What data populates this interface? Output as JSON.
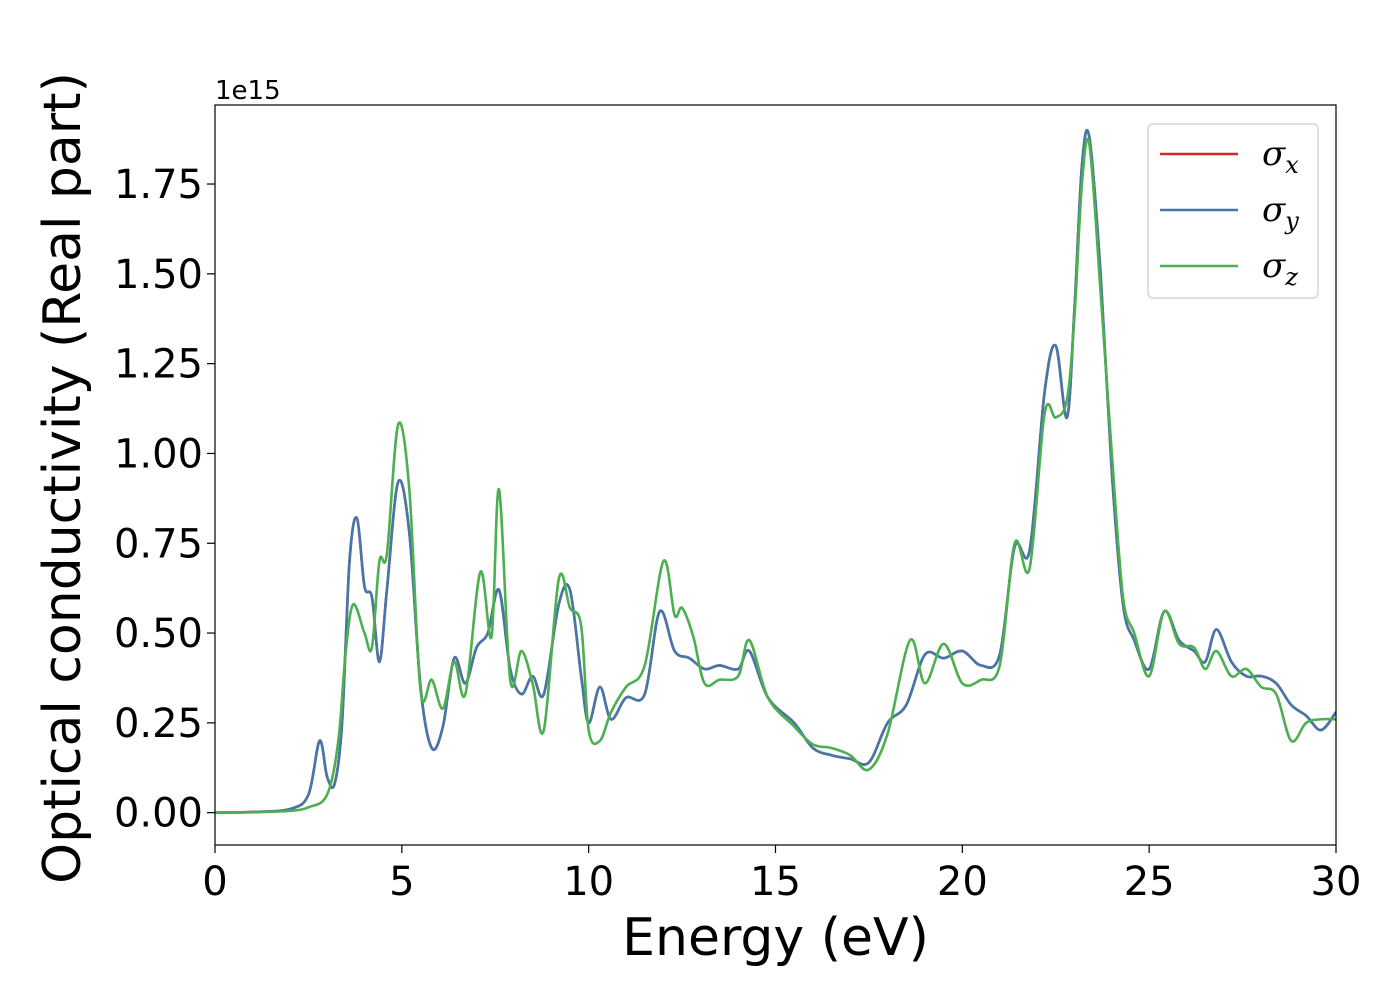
{
  "chart_data": {
    "type": "line",
    "xlabel": "Energy (eV)",
    "ylabel": "Optical conductivity (Real part)",
    "offset_text": "1e15",
    "xlim": [
      0,
      30
    ],
    "ylim": [
      -0.09,
      1.97
    ],
    "x_ticks": [
      0,
      5,
      10,
      15,
      20,
      25,
      30
    ],
    "x_tick_labels": [
      "0",
      "5",
      "10",
      "15",
      "20",
      "25",
      "30"
    ],
    "y_ticks": [
      0,
      0.25,
      0.5,
      0.75,
      1.0,
      1.25,
      1.5,
      1.75
    ],
    "y_tick_labels": [
      "0.00",
      "0.25",
      "0.50",
      "0.75",
      "1.00",
      "1.25",
      "1.50",
      "1.75"
    ],
    "grid": false,
    "legend_position": "top-right",
    "colors": {
      "sigma_x": "#d62728",
      "sigma_y": "#4477aa",
      "sigma_z": "#4caf50"
    },
    "series": [
      {
        "name": "σx",
        "legend_symbol": "σ",
        "legend_sub": "x",
        "color": "#d62728",
        "x": [
          0,
          1,
          2,
          2.5,
          2.8,
          3.0,
          3.2,
          3.4,
          3.6,
          3.8,
          4.0,
          4.2,
          4.4,
          4.6,
          4.9,
          5.2,
          5.5,
          5.8,
          6.1,
          6.4,
          6.7,
          7.0,
          7.3,
          7.6,
          7.9,
          8.2,
          8.5,
          8.8,
          9.2,
          9.5,
          9.8,
          10.0,
          10.3,
          10.6,
          11.0,
          11.5,
          11.9,
          12.3,
          12.7,
          13.1,
          13.5,
          14.0,
          14.3,
          14.8,
          15.5,
          16.0,
          16.5,
          17.0,
          17.5,
          18.0,
          18.5,
          19.0,
          19.5,
          20.0,
          20.5,
          21.0,
          21.4,
          21.8,
          22.2,
          22.5,
          22.8,
          23.0,
          23.2,
          23.4,
          23.7,
          24.0,
          24.3,
          24.6,
          25.0,
          25.4,
          25.8,
          26.2,
          26.5,
          26.8,
          27.2,
          27.6,
          28.0,
          28.4,
          28.8,
          29.2,
          29.6,
          30.0
        ],
        "y": [
          0,
          0.002,
          0.01,
          0.05,
          0.2,
          0.1,
          0.08,
          0.25,
          0.7,
          0.82,
          0.63,
          0.6,
          0.42,
          0.62,
          0.92,
          0.78,
          0.35,
          0.18,
          0.24,
          0.43,
          0.36,
          0.46,
          0.5,
          0.62,
          0.4,
          0.33,
          0.38,
          0.33,
          0.58,
          0.62,
          0.38,
          0.25,
          0.35,
          0.26,
          0.32,
          0.33,
          0.56,
          0.45,
          0.43,
          0.4,
          0.41,
          0.4,
          0.45,
          0.32,
          0.25,
          0.18,
          0.16,
          0.15,
          0.14,
          0.25,
          0.3,
          0.44,
          0.43,
          0.45,
          0.41,
          0.44,
          0.74,
          0.73,
          1.17,
          1.3,
          1.1,
          1.4,
          1.8,
          1.88,
          1.5,
          0.95,
          0.58,
          0.48,
          0.4,
          0.56,
          0.48,
          0.45,
          0.42,
          0.51,
          0.42,
          0.38,
          0.38,
          0.36,
          0.3,
          0.27,
          0.23,
          0.28
        ]
      },
      {
        "name": "σy",
        "legend_symbol": "σ",
        "legend_sub": "y",
        "color": "#4477aa",
        "x": [
          0,
          1,
          2,
          2.5,
          2.8,
          3.0,
          3.2,
          3.4,
          3.6,
          3.8,
          4.0,
          4.2,
          4.4,
          4.6,
          4.9,
          5.2,
          5.5,
          5.8,
          6.1,
          6.4,
          6.7,
          7.0,
          7.3,
          7.6,
          7.9,
          8.2,
          8.5,
          8.8,
          9.2,
          9.5,
          9.8,
          10.0,
          10.3,
          10.6,
          11.0,
          11.5,
          11.9,
          12.3,
          12.7,
          13.1,
          13.5,
          14.0,
          14.3,
          14.8,
          15.5,
          16.0,
          16.5,
          17.0,
          17.5,
          18.0,
          18.5,
          19.0,
          19.5,
          20.0,
          20.5,
          21.0,
          21.4,
          21.8,
          22.2,
          22.5,
          22.8,
          23.0,
          23.2,
          23.4,
          23.7,
          24.0,
          24.3,
          24.6,
          25.0,
          25.4,
          25.8,
          26.2,
          26.5,
          26.8,
          27.2,
          27.6,
          28.0,
          28.4,
          28.8,
          29.2,
          29.6,
          30.0
        ],
        "y": [
          0,
          0.002,
          0.01,
          0.05,
          0.2,
          0.1,
          0.08,
          0.25,
          0.7,
          0.82,
          0.63,
          0.6,
          0.42,
          0.62,
          0.92,
          0.78,
          0.35,
          0.18,
          0.24,
          0.43,
          0.36,
          0.46,
          0.5,
          0.62,
          0.4,
          0.33,
          0.38,
          0.33,
          0.58,
          0.62,
          0.38,
          0.25,
          0.35,
          0.26,
          0.32,
          0.33,
          0.56,
          0.45,
          0.43,
          0.4,
          0.41,
          0.4,
          0.45,
          0.32,
          0.25,
          0.18,
          0.16,
          0.15,
          0.14,
          0.25,
          0.3,
          0.44,
          0.43,
          0.45,
          0.41,
          0.44,
          0.74,
          0.73,
          1.17,
          1.3,
          1.1,
          1.4,
          1.8,
          1.88,
          1.5,
          0.95,
          0.58,
          0.48,
          0.4,
          0.56,
          0.48,
          0.45,
          0.42,
          0.51,
          0.42,
          0.38,
          0.38,
          0.36,
          0.3,
          0.27,
          0.23,
          0.28
        ]
      },
      {
        "name": "σz",
        "legend_symbol": "σ",
        "legend_sub": "z",
        "color": "#4caf50",
        "x": [
          0,
          1,
          2,
          2.5,
          3.0,
          3.3,
          3.5,
          3.7,
          4.0,
          4.2,
          4.4,
          4.6,
          4.9,
          5.2,
          5.5,
          5.8,
          6.1,
          6.4,
          6.7,
          7.1,
          7.4,
          7.6,
          7.9,
          8.2,
          8.5,
          8.8,
          9.2,
          9.5,
          9.8,
          10.0,
          10.3,
          10.6,
          11.0,
          11.5,
          12.0,
          12.3,
          12.5,
          12.8,
          13.1,
          13.5,
          14.0,
          14.3,
          14.8,
          15.5,
          16.0,
          16.5,
          17.0,
          17.5,
          18.0,
          18.6,
          19.0,
          19.5,
          20.0,
          20.5,
          21.0,
          21.4,
          21.8,
          22.2,
          22.5,
          22.8,
          23.0,
          23.2,
          23.4,
          23.7,
          24.0,
          24.3,
          24.6,
          25.0,
          25.4,
          25.8,
          26.2,
          26.5,
          26.8,
          27.2,
          27.6,
          28.0,
          28.4,
          28.8,
          29.2,
          29.6,
          30.0
        ],
        "y": [
          0,
          0.001,
          0.005,
          0.015,
          0.05,
          0.2,
          0.45,
          0.58,
          0.5,
          0.46,
          0.7,
          0.72,
          1.08,
          0.9,
          0.34,
          0.37,
          0.29,
          0.42,
          0.33,
          0.67,
          0.49,
          0.9,
          0.37,
          0.45,
          0.36,
          0.23,
          0.65,
          0.57,
          0.52,
          0.23,
          0.2,
          0.28,
          0.35,
          0.41,
          0.7,
          0.55,
          0.57,
          0.49,
          0.36,
          0.37,
          0.38,
          0.48,
          0.32,
          0.24,
          0.19,
          0.18,
          0.16,
          0.12,
          0.22,
          0.48,
          0.36,
          0.47,
          0.36,
          0.37,
          0.41,
          0.75,
          0.68,
          1.11,
          1.1,
          1.15,
          1.38,
          1.75,
          1.86,
          1.45,
          1.0,
          0.6,
          0.5,
          0.38,
          0.56,
          0.47,
          0.46,
          0.4,
          0.45,
          0.38,
          0.4,
          0.35,
          0.33,
          0.2,
          0.25,
          0.26,
          0.26
        ]
      }
    ]
  }
}
